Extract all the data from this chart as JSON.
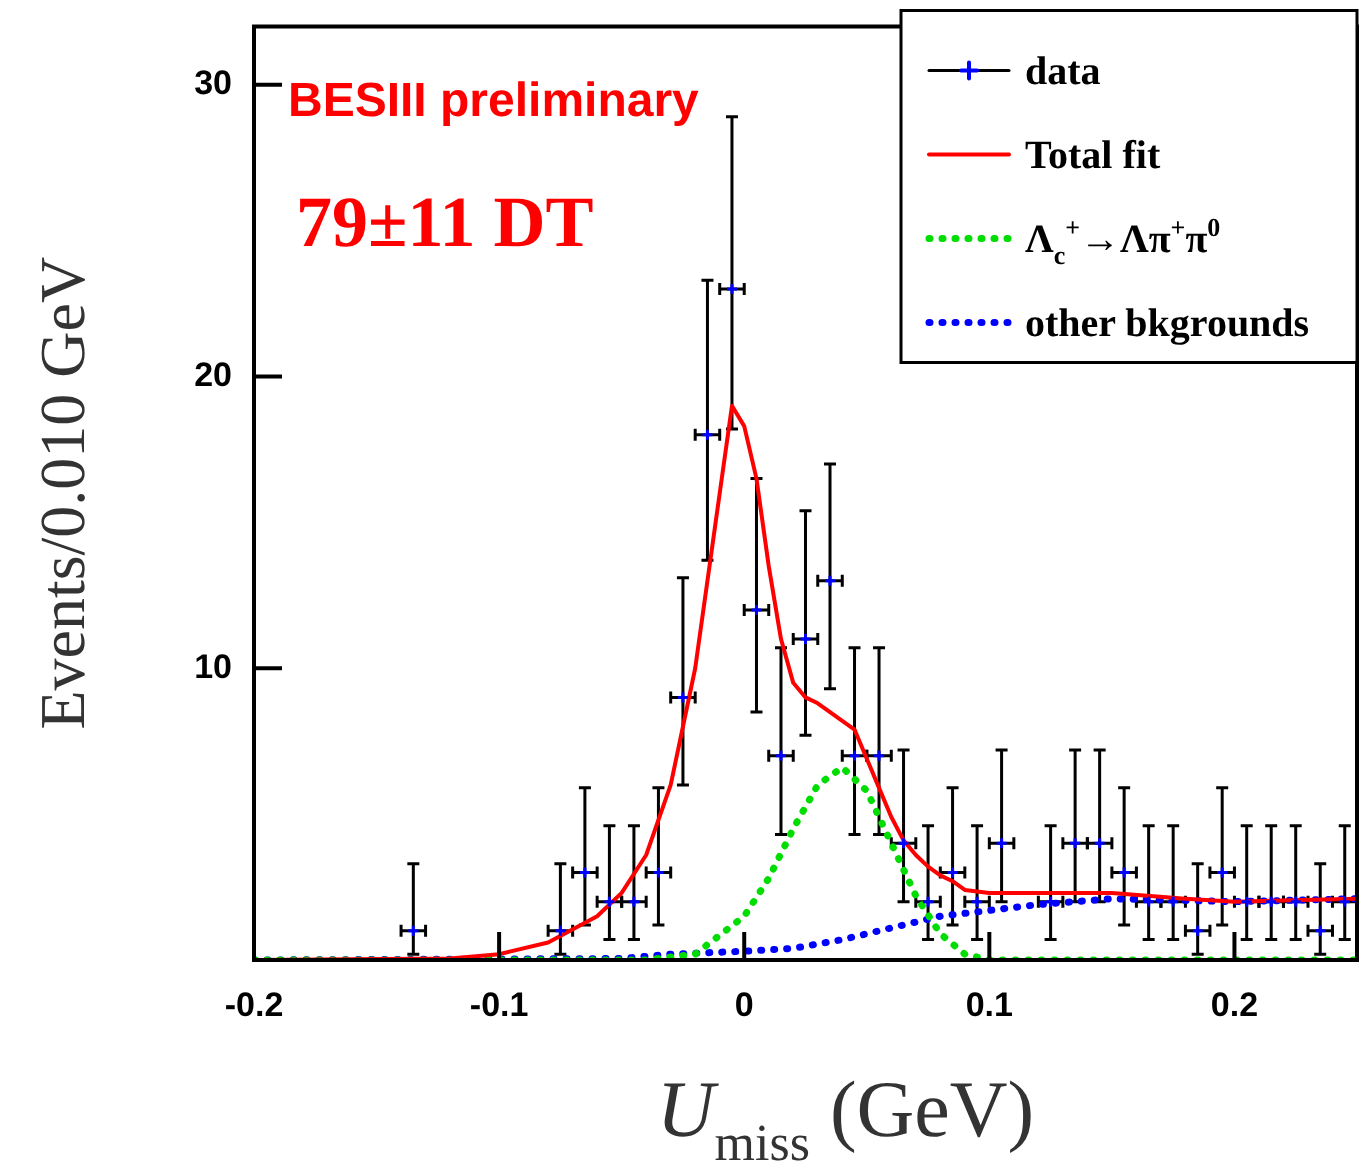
{
  "chart_data": {
    "type": "scatter",
    "ylabel": "Events/0.010 GeV",
    "xlabel": "U$_{miss}$ (GeV)",
    "annotations": [
      "BESIII preliminary",
      "79±11 DT"
    ],
    "xlim": [
      -0.2,
      0.25
    ],
    "xticks": [
      -0.2,
      -0.1,
      0,
      0.1,
      0.2
    ],
    "ylim": [
      0,
      32
    ],
    "yticks": [
      10,
      20,
      30
    ],
    "legend": "top right",
    "series": [
      {
        "name": "data",
        "type": "scatter",
        "marker": "cross",
        "color": "#0000ff",
        "x": [
          -0.135,
          -0.075,
          -0.065,
          -0.055,
          -0.045,
          -0.035,
          -0.025,
          -0.015,
          -0.005,
          0.005,
          0.015,
          0.025,
          0.035,
          0.045,
          0.055,
          0.065,
          0.075,
          0.085,
          0.095,
          0.105,
          0.125,
          0.135,
          0.145,
          0.155,
          0.165,
          0.175,
          0.185,
          0.195,
          0.205,
          0.215,
          0.225,
          0.235,
          0.245
        ],
        "values": [
          1,
          1,
          3,
          2,
          2,
          3,
          9,
          18,
          23,
          12,
          7,
          11,
          13,
          7,
          7,
          4,
          2,
          3,
          2,
          4,
          2,
          4,
          4,
          3,
          2,
          2,
          1,
          3,
          2,
          2,
          2,
          1,
          2
        ],
        "errors": [
          [
            0.2,
            3.3
          ],
          [
            0.2,
            3.3
          ],
          [
            1.2,
            5.9
          ],
          [
            0.7,
            4.6
          ],
          [
            0.7,
            4.6
          ],
          [
            1.2,
            5.9
          ],
          [
            6.0,
            13.1
          ],
          [
            13.7,
            23.3
          ],
          [
            18.2,
            28.9
          ],
          [
            8.5,
            16.5
          ],
          [
            4.3,
            10.7
          ],
          [
            7.7,
            15.4
          ],
          [
            9.3,
            17.0
          ],
          [
            4.3,
            10.7
          ],
          [
            4.3,
            10.7
          ],
          [
            2.0,
            7.2
          ],
          [
            0.7,
            4.6
          ],
          [
            1.2,
            5.9
          ],
          [
            0.7,
            4.6
          ],
          [
            2.0,
            7.2
          ],
          [
            0.7,
            4.6
          ],
          [
            2.0,
            7.2
          ],
          [
            2.0,
            7.2
          ],
          [
            1.2,
            5.9
          ],
          [
            0.7,
            4.6
          ],
          [
            0.7,
            4.6
          ],
          [
            0.2,
            3.3
          ],
          [
            1.2,
            5.9
          ],
          [
            0.7,
            4.6
          ],
          [
            0.7,
            4.6
          ],
          [
            0.7,
            4.6
          ],
          [
            0.2,
            3.3
          ],
          [
            0.7,
            4.6
          ]
        ],
        "xerrors": [
          0.005,
          0.005,
          0.005,
          0.005,
          0.005,
          0.005,
          0.005,
          0.005,
          0.005,
          0.005,
          0.005,
          0.005,
          0.005,
          0.005,
          0.005,
          0.005,
          0.005,
          0.005,
          0.005,
          0.005,
          0.005,
          0.005,
          0.005,
          0.005,
          0.005,
          0.005,
          0.005,
          0.005,
          0.005,
          0.005,
          0.005,
          0.005,
          0.005
        ]
      },
      {
        "name": "Total fit",
        "type": "line",
        "line_style": "solid",
        "marker": "none",
        "color": "#ff0000",
        "x": [
          -0.2,
          -0.12,
          -0.1,
          -0.08,
          -0.06,
          -0.05,
          -0.04,
          -0.03,
          -0.02,
          -0.01,
          -0.005,
          0,
          0.005,
          0.01,
          0.015,
          0.02,
          0.025,
          0.03,
          0.035,
          0.04,
          0.045,
          0.05,
          0.055,
          0.06,
          0.065,
          0.07,
          0.075,
          0.08,
          0.085,
          0.09,
          0.1,
          0.12,
          0.15,
          0.18,
          0.2,
          0.25
        ],
        "values": [
          0,
          0.05,
          0.2,
          0.6,
          1.5,
          2.3,
          3.6,
          6,
          10,
          16,
          19,
          18.3,
          16.5,
          13.5,
          11,
          9.5,
          9,
          8.8,
          8.5,
          8.2,
          7.9,
          6.9,
          5.9,
          4.9,
          4.1,
          3.6,
          3.2,
          2.9,
          2.7,
          2.4,
          2.3,
          2.3,
          2.3,
          2.1,
          2.0,
          2.1
        ]
      },
      {
        "name": "Λ$_{c}$$^{+}$→Λπ$^{+}$π$^{0}$",
        "type": "line",
        "line_style": "dotted",
        "marker": "none",
        "color": "#00dd00",
        "x": [
          -0.2,
          -0.04,
          -0.02,
          0,
          0.01,
          0.02,
          0.03,
          0.04,
          0.05,
          0.06,
          0.07,
          0.08,
          0.09,
          0.1,
          0.25
        ],
        "values": [
          0,
          0,
          0.2,
          1.5,
          2.8,
          4.5,
          6,
          6.6,
          5.8,
          4,
          2.2,
          0.9,
          0.2,
          0,
          0
        ]
      },
      {
        "name": "other bkgrounds",
        "type": "line",
        "line_style": "dotted",
        "marker": "none",
        "color": "#0000ff",
        "x": [
          -0.2,
          -0.05,
          -0.03,
          0,
          0.02,
          0.04,
          0.06,
          0.07,
          0.08,
          0.1,
          0.12,
          0.15,
          0.2,
          0.25
        ],
        "values": [
          0,
          0.05,
          0.2,
          0.3,
          0.4,
          0.7,
          1.1,
          1.3,
          1.5,
          1.7,
          1.9,
          2.1,
          2.0,
          2.1
        ]
      }
    ]
  }
}
